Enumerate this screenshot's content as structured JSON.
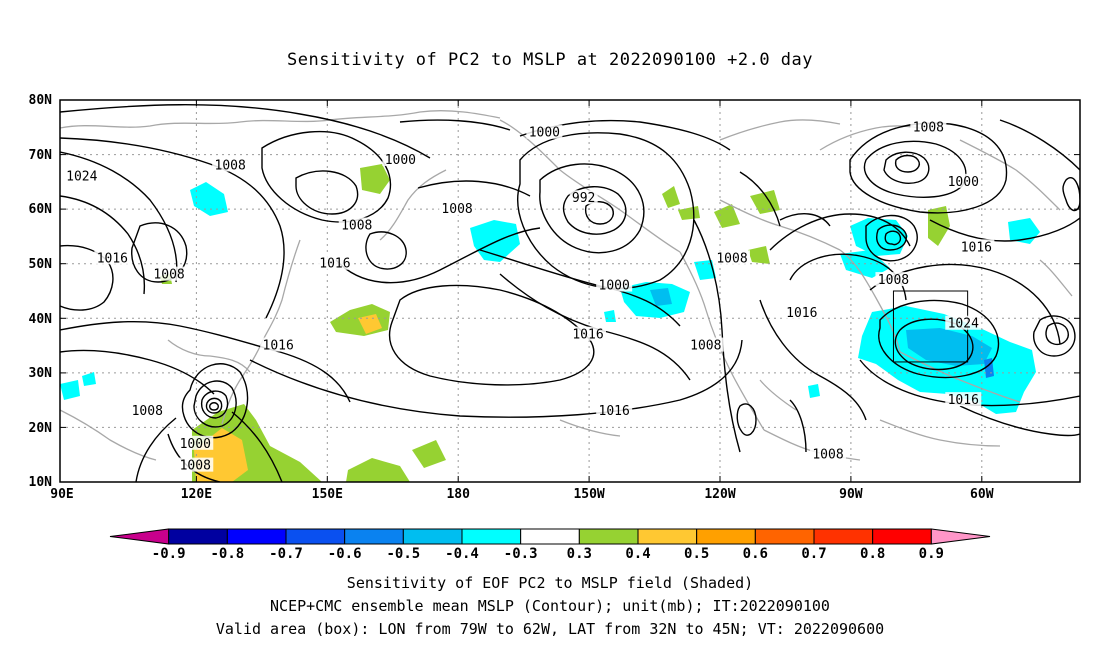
{
  "title": "Sensitivity of PC2 to MSLP at 2022090100 +2.0 day",
  "map": {
    "lat_ticks": [
      "80N",
      "70N",
      "60N",
      "50N",
      "40N",
      "30N",
      "20N",
      "10N"
    ],
    "lon_ticks": [
      "90E",
      "120E",
      "150E",
      "180",
      "150W",
      "120W",
      "90W",
      "60W"
    ],
    "contour_labels": [
      {
        "text": "1000",
        "lon": 201,
        "lat": 74
      },
      {
        "text": "1008",
        "lon": 289,
        "lat": 75
      },
      {
        "text": "1000",
        "lon": 168,
        "lat": 69
      },
      {
        "text": "1008",
        "lon": 129,
        "lat": 68
      },
      {
        "text": "1024",
        "lon": 95,
        "lat": 66
      },
      {
        "text": "1000",
        "lon": 297,
        "lat": 65
      },
      {
        "text": "992",
        "lon": 210,
        "lat": 62
      },
      {
        "text": "1008",
        "lon": 181,
        "lat": 60
      },
      {
        "text": "1008",
        "lon": 158,
        "lat": 57
      },
      {
        "text": "1016",
        "lon": 300,
        "lat": 53
      },
      {
        "text": "1008",
        "lon": 244,
        "lat": 51
      },
      {
        "text": "1016",
        "lon": 102,
        "lat": 51
      },
      {
        "text": "1016",
        "lon": 153,
        "lat": 50
      },
      {
        "text": "1008",
        "lon": 115,
        "lat": 48
      },
      {
        "text": "1008",
        "lon": 281,
        "lat": 47
      },
      {
        "text": "1000",
        "lon": 217,
        "lat": 46
      },
      {
        "text": "1016",
        "lon": 260,
        "lat": 41
      },
      {
        "text": "1024",
        "lon": 297,
        "lat": 39
      },
      {
        "text": "1016",
        "lon": 211,
        "lat": 37
      },
      {
        "text": "1016",
        "lon": 140,
        "lat": 35
      },
      {
        "text": "1008",
        "lon": 238,
        "lat": 35
      },
      {
        "text": "1016",
        "lon": 297,
        "lat": 25
      },
      {
        "text": "1016",
        "lon": 217,
        "lat": 23
      },
      {
        "text": "1008",
        "lon": 110,
        "lat": 23
      },
      {
        "text": "1000",
        "lon": 121,
        "lat": 17
      },
      {
        "text": "1008",
        "lon": 121,
        "lat": 13
      },
      {
        "text": "1008",
        "lon": 266,
        "lat": 15
      }
    ],
    "valid_box": {
      "lon_w": 281,
      "lon_e": 298,
      "lat_s": 32,
      "lat_n": 45
    }
  },
  "colorbar": {
    "labels": [
      "-0.9",
      "-0.8",
      "-0.7",
      "-0.6",
      "-0.5",
      "-0.4",
      "-0.3",
      "0.3",
      "0.4",
      "0.5",
      "0.6",
      "0.7",
      "0.8",
      "0.9"
    ],
    "colors": [
      "#c8008c",
      "#0000a0",
      "#0000ff",
      "#0a50f0",
      "#0a82f0",
      "#00bef0",
      "#00ffff",
      "#ffffff",
      "#96d232",
      "#ffc832",
      "#ffa000",
      "#ff6400",
      "#ff3200",
      "#ff0000",
      "#ff96c8"
    ]
  },
  "caption": {
    "line1": "Sensitivity of EOF PC2 to MSLP field (Shaded)",
    "line2": "NCEP+CMC ensemble mean MSLP (Contour); unit(mb); IT:2022090100",
    "line3": "Valid area (box): LON from 79W to 62W, LAT from 32N to 45N; VT: 2022090600"
  }
}
